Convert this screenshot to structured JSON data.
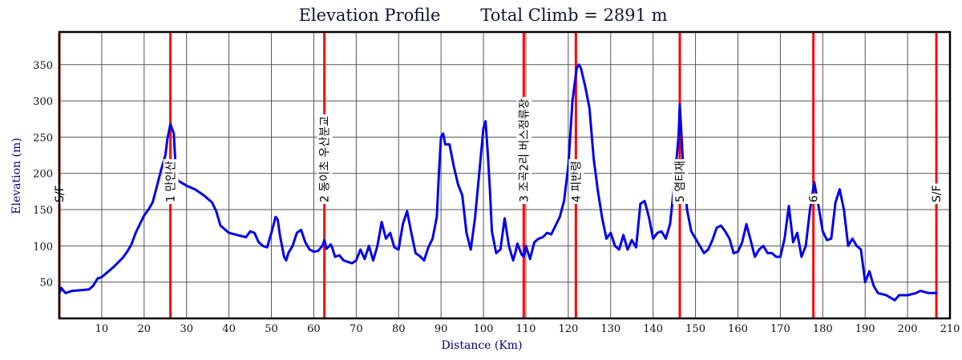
{
  "chart_data": {
    "type": "line",
    "title": "Elevation Profile",
    "subtitle": "Total Climb = 2891 m",
    "xlabel": "Distance (Km)",
    "ylabel": "Elevation (m)",
    "xlim": [
      0,
      210
    ],
    "ylim": [
      0,
      395
    ],
    "x_ticks": [
      10,
      20,
      30,
      40,
      50,
      60,
      70,
      80,
      90,
      100,
      110,
      120,
      130,
      140,
      150,
      160,
      170,
      180,
      190,
      200,
      210
    ],
    "y_ticks": [
      50,
      100,
      150,
      200,
      250,
      300,
      350
    ],
    "grid": true,
    "colors": {
      "line": "#0000ee",
      "marker": "#ff0000",
      "grid": "#555555",
      "frame": "#000000"
    },
    "markers": [
      {
        "x": 0,
        "label": "S/F"
      },
      {
        "x": 26.2,
        "label": "1 만인산"
      },
      {
        "x": 62.5,
        "label": "2 동이초 우산분교"
      },
      {
        "x": 109.5,
        "label": "3 조곡2리 버스정류장"
      },
      {
        "x": 121.8,
        "label": "4 피반령"
      },
      {
        "x": 146.3,
        "label": "5 염티재"
      },
      {
        "x": 177.8,
        "label": "6"
      },
      {
        "x": 206.8,
        "label": "S/F"
      }
    ],
    "series": [
      {
        "values": [
          [
            0,
            35
          ],
          [
            0.5,
            42
          ],
          [
            1,
            38
          ],
          [
            1.5,
            35
          ],
          [
            2,
            36
          ],
          [
            3,
            38
          ],
          [
            5,
            39
          ],
          [
            7,
            40
          ],
          [
            8,
            45
          ],
          [
            9,
            55
          ],
          [
            10,
            57
          ],
          [
            11,
            62
          ],
          [
            12,
            67
          ],
          [
            13,
            72
          ],
          [
            14,
            78
          ],
          [
            15,
            84
          ],
          [
            16,
            92
          ],
          [
            17,
            102
          ],
          [
            18,
            118
          ],
          [
            19,
            130
          ],
          [
            20,
            142
          ],
          [
            21,
            150
          ],
          [
            22,
            160
          ],
          [
            23,
            182
          ],
          [
            24,
            205
          ],
          [
            25,
            225
          ],
          [
            25.5,
            248
          ],
          [
            26.2,
            268
          ],
          [
            27,
            255
          ],
          [
            27.5,
            200
          ],
          [
            28,
            190
          ],
          [
            30,
            183
          ],
          [
            32,
            178
          ],
          [
            34,
            170
          ],
          [
            36,
            160
          ],
          [
            37,
            148
          ],
          [
            38,
            128
          ],
          [
            40,
            118
          ],
          [
            42,
            115
          ],
          [
            44,
            112
          ],
          [
            45,
            120
          ],
          [
            46,
            118
          ],
          [
            47,
            105
          ],
          [
            48,
            100
          ],
          [
            49,
            98
          ],
          [
            50,
            118
          ],
          [
            51,
            140
          ],
          [
            51.5,
            136
          ],
          [
            52,
            115
          ],
          [
            53,
            85
          ],
          [
            53.5,
            80
          ],
          [
            54,
            90
          ],
          [
            55,
            100
          ],
          [
            56,
            118
          ],
          [
            57,
            122
          ],
          [
            58,
            105
          ],
          [
            59,
            95
          ],
          [
            60,
            92
          ],
          [
            61,
            93
          ],
          [
            62,
            100
          ],
          [
            62.5,
            108
          ],
          [
            63,
            96
          ],
          [
            64,
            102
          ],
          [
            64.5,
            95
          ],
          [
            65,
            85
          ],
          [
            66,
            87
          ],
          [
            67,
            80
          ],
          [
            68,
            78
          ],
          [
            69,
            76
          ],
          [
            70,
            80
          ],
          [
            71,
            95
          ],
          [
            72,
            82
          ],
          [
            73,
            100
          ],
          [
            74,
            80
          ],
          [
            75,
            100
          ],
          [
            76,
            133
          ],
          [
            77,
            110
          ],
          [
            78,
            118
          ],
          [
            79,
            98
          ],
          [
            80,
            95
          ],
          [
            81,
            130
          ],
          [
            82,
            148
          ],
          [
            83,
            118
          ],
          [
            84,
            90
          ],
          [
            85,
            86
          ],
          [
            86,
            80
          ],
          [
            87,
            98
          ],
          [
            88,
            110
          ],
          [
            89,
            140
          ],
          [
            89.5,
            200
          ],
          [
            90,
            250
          ],
          [
            90.5,
            255
          ],
          [
            91,
            240
          ],
          [
            92,
            240
          ],
          [
            93,
            210
          ],
          [
            94,
            185
          ],
          [
            95,
            170
          ],
          [
            96,
            118
          ],
          [
            97,
            95
          ],
          [
            98,
            138
          ],
          [
            99,
            200
          ],
          [
            100,
            262
          ],
          [
            100.5,
            272
          ],
          [
            101,
            230
          ],
          [
            101.5,
            180
          ],
          [
            102,
            120
          ],
          [
            103,
            90
          ],
          [
            104,
            95
          ],
          [
            105,
            138
          ],
          [
            106,
            100
          ],
          [
            107,
            80
          ],
          [
            107.5,
            90
          ],
          [
            108,
            103
          ],
          [
            109,
            88
          ],
          [
            109.5,
            85
          ],
          [
            110,
            100
          ],
          [
            111,
            82
          ],
          [
            112,
            105
          ],
          [
            113,
            110
          ],
          [
            114,
            112
          ],
          [
            115,
            118
          ],
          [
            116,
            116
          ],
          [
            117,
            128
          ],
          [
            118,
            140
          ],
          [
            119,
            162
          ],
          [
            120,
            210
          ],
          [
            121,
            300
          ],
          [
            122,
            345
          ],
          [
            122.5,
            350
          ],
          [
            123,
            345
          ],
          [
            124,
            320
          ],
          [
            125,
            290
          ],
          [
            126,
            220
          ],
          [
            127,
            175
          ],
          [
            128,
            138
          ],
          [
            129,
            110
          ],
          [
            130,
            118
          ],
          [
            131,
            100
          ],
          [
            132,
            95
          ],
          [
            133,
            115
          ],
          [
            134,
            95
          ],
          [
            135,
            108
          ],
          [
            136,
            98
          ],
          [
            137,
            158
          ],
          [
            138,
            162
          ],
          [
            139,
            140
          ],
          [
            140,
            110
          ],
          [
            141,
            118
          ],
          [
            142,
            120
          ],
          [
            143,
            110
          ],
          [
            144,
            130
          ],
          [
            145,
            185
          ],
          [
            146,
            250
          ],
          [
            146.3,
            295
          ],
          [
            147,
            220
          ],
          [
            148,
            150
          ],
          [
            149,
            120
          ],
          [
            150,
            110
          ],
          [
            151,
            100
          ],
          [
            152,
            90
          ],
          [
            153,
            95
          ],
          [
            154,
            108
          ],
          [
            155,
            125
          ],
          [
            156,
            128
          ],
          [
            157,
            120
          ],
          [
            158,
            110
          ],
          [
            159,
            90
          ],
          [
            160,
            92
          ],
          [
            161,
            105
          ],
          [
            162,
            130
          ],
          [
            163,
            108
          ],
          [
            164,
            85
          ],
          [
            165,
            95
          ],
          [
            166,
            100
          ],
          [
            167,
            90
          ],
          [
            168,
            90
          ],
          [
            169,
            85
          ],
          [
            170,
            85
          ],
          [
            171,
            110
          ],
          [
            172,
            155
          ],
          [
            173,
            105
          ],
          [
            174,
            118
          ],
          [
            175,
            85
          ],
          [
            176,
            100
          ],
          [
            177,
            150
          ],
          [
            178,
            188
          ],
          [
            179,
            155
          ],
          [
            180,
            120
          ],
          [
            181,
            108
          ],
          [
            182,
            110
          ],
          [
            183,
            160
          ],
          [
            184,
            178
          ],
          [
            185,
            150
          ],
          [
            186,
            100
          ],
          [
            187,
            110
          ],
          [
            188,
            100
          ],
          [
            189,
            95
          ],
          [
            190,
            50
          ],
          [
            191,
            65
          ],
          [
            192,
            45
          ],
          [
            193,
            35
          ],
          [
            195,
            32
          ],
          [
            197,
            25
          ],
          [
            198,
            32
          ],
          [
            200,
            32
          ],
          [
            202,
            35
          ],
          [
            203,
            38
          ],
          [
            205,
            35
          ],
          [
            206.8,
            35
          ]
        ]
      }
    ]
  }
}
